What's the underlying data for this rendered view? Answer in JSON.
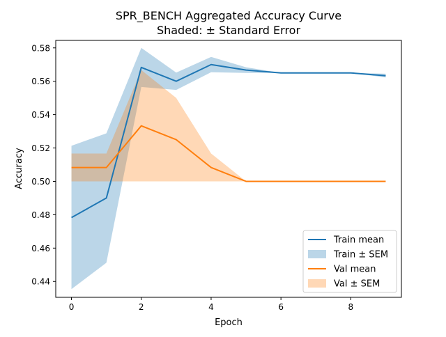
{
  "chart_data": {
    "type": "line",
    "title": "SPR_BENCH Aggregated Accuracy Curve",
    "subtitle": "Shaded: ± Standard Error",
    "xlabel": "Epoch",
    "ylabel": "Accuracy",
    "xlim": [
      -0.45,
      9.45
    ],
    "ylim": [
      0.4305,
      0.5845
    ],
    "xticks": [
      0,
      2,
      4,
      6,
      8
    ],
    "xtick_labels": [
      "0",
      "2",
      "4",
      "6",
      "8"
    ],
    "yticks": [
      0.44,
      0.46,
      0.48,
      0.5,
      0.52,
      0.54,
      0.56,
      0.58
    ],
    "ytick_labels": [
      "0.44",
      "0.46",
      "0.48",
      "0.50",
      "0.52",
      "0.54",
      "0.56",
      "0.58"
    ],
    "grid": false,
    "legend_position": "lower-right",
    "x": [
      0,
      1,
      2,
      3,
      4,
      5,
      6,
      7,
      8,
      9
    ],
    "series": [
      {
        "name": "Train mean",
        "band_name": "Train ± SEM",
        "color": "#1f77b4",
        "band_color": "#1f77b4",
        "values": [
          0.4783,
          0.49,
          0.5683,
          0.56,
          0.57,
          0.5667,
          0.565,
          0.565,
          0.565,
          0.5633
        ],
        "lower": [
          0.4354,
          0.4512,
          0.5566,
          0.5548,
          0.5654,
          0.565,
          0.565,
          0.565,
          0.565,
          0.5623
        ],
        "upper": [
          0.5213,
          0.5288,
          0.58,
          0.5652,
          0.5746,
          0.5684,
          0.565,
          0.565,
          0.565,
          0.5645
        ]
      },
      {
        "name": "Val mean",
        "band_name": "Val ± SEM",
        "color": "#ff7f0e",
        "band_color": "#ff7f0e",
        "values": [
          0.5083,
          0.5083,
          0.5333,
          0.525,
          0.5083,
          0.5,
          0.5,
          0.5,
          0.5,
          0.5
        ],
        "lower": [
          0.5,
          0.5,
          0.5,
          0.5,
          0.5,
          0.5,
          0.5,
          0.5,
          0.5,
          0.5
        ],
        "upper": [
          0.5167,
          0.5167,
          0.5667,
          0.55,
          0.5167,
          0.5,
          0.5,
          0.5,
          0.5,
          0.5
        ]
      }
    ]
  }
}
